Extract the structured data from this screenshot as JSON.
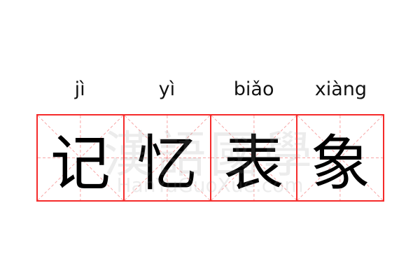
{
  "characters": [
    {
      "hanzi": "记",
      "pinyin": "jì"
    },
    {
      "hanzi": "忆",
      "pinyin": "yì"
    },
    {
      "hanzi": "表",
      "pinyin": "biǎo"
    },
    {
      "hanzi": "象",
      "pinyin": "xiàng"
    }
  ],
  "watermark": {
    "cn": "漢語國學",
    "en": "HanYuGuoXue.com"
  },
  "colors": {
    "grid": "#f52a2a",
    "guide": "#f7a5a5",
    "text": "#000000"
  }
}
